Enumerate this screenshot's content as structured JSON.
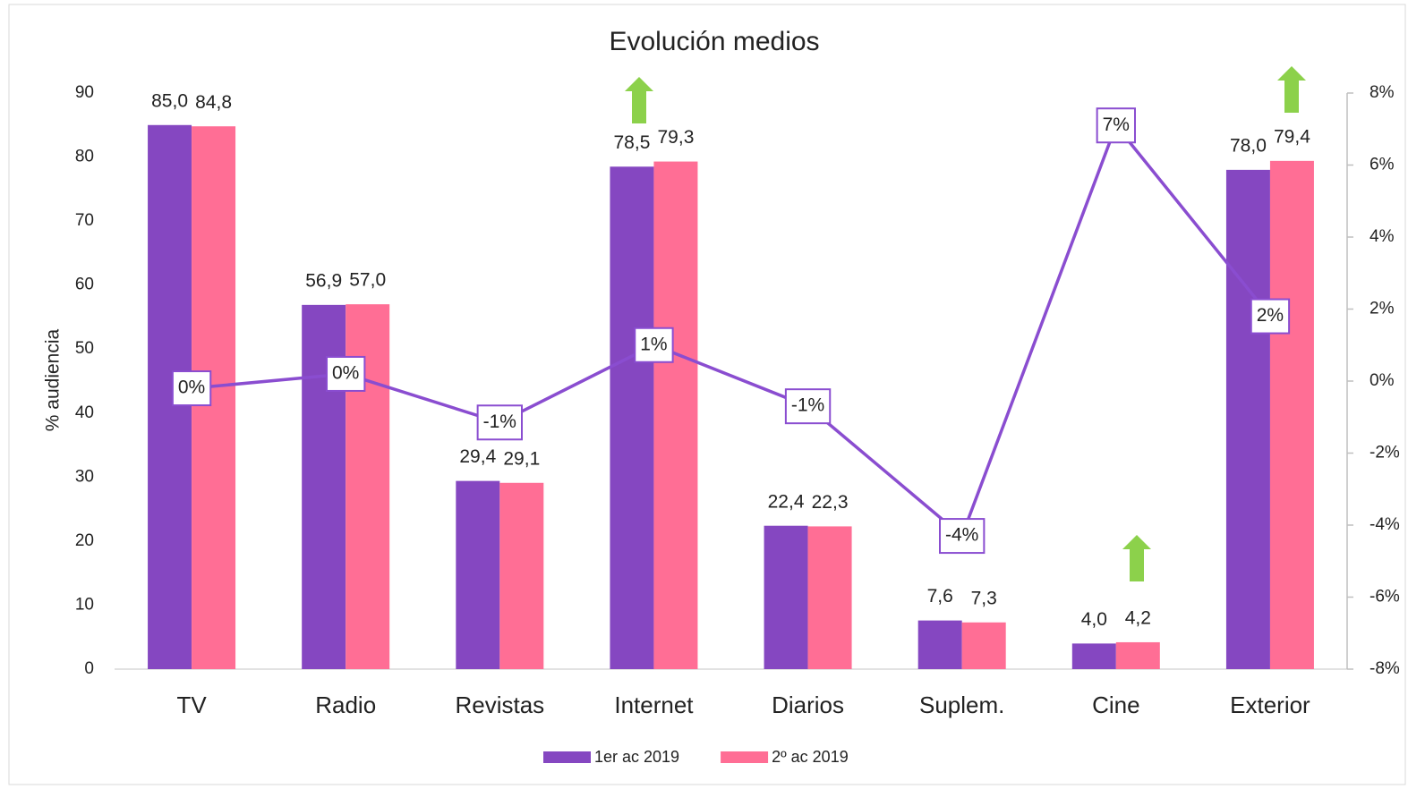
{
  "chart_data": {
    "type": "bar",
    "title": "Evolución medios",
    "y_label": "% audiencia",
    "categories": [
      "TV",
      "Radio",
      "Revistas",
      "Internet",
      "Diarios",
      "Suplem.",
      "Cine",
      "Exterior"
    ],
    "series": [
      {
        "name": "1er ac 2019",
        "color": "#8547c1",
        "values": [
          85.0,
          56.9,
          29.4,
          78.5,
          22.4,
          7.6,
          4.0,
          78.0
        ],
        "value_labels": [
          "85,0",
          "56,9",
          "29,4",
          "78,5",
          "22,4",
          "7,6",
          "4,0",
          "78,0"
        ]
      },
      {
        "name": "2º ac 2019",
        "color": "#ff6e95",
        "values": [
          84.8,
          57.0,
          29.1,
          79.3,
          22.3,
          7.3,
          4.2,
          79.4
        ],
        "value_labels": [
          "84,8",
          "57,0",
          "29,1",
          "79,3",
          "22,3",
          "7,3",
          "4,2",
          "79,4"
        ]
      },
      {
        "type": "line",
        "axis": "y2",
        "color": "#8a4dd0",
        "values": [
          -0.2,
          0.2,
          -1.15,
          1.0,
          -0.7,
          -4.3,
          7.1,
          1.8
        ],
        "value_labels": [
          "0%",
          "0%",
          "-1%",
          "1%",
          "-1%",
          "-4%",
          "7%",
          "2%"
        ]
      }
    ],
    "ylim": [
      0,
      90
    ],
    "yticks": [
      0,
      10,
      20,
      30,
      40,
      50,
      60,
      70,
      80,
      90
    ],
    "y2lim": [
      -8,
      8
    ],
    "y2ticks": [
      {
        "value": -8,
        "label": "-8%"
      },
      {
        "value": -6,
        "label": "-6%"
      },
      {
        "value": -4,
        "label": "-4%"
      },
      {
        "value": -2,
        "label": "-2%"
      },
      {
        "value": 0,
        "label": "0%"
      },
      {
        "value": 2,
        "label": "2%"
      },
      {
        "value": 4,
        "label": "4%"
      },
      {
        "value": 6,
        "label": "6%"
      },
      {
        "value": 8,
        "label": "8%"
      }
    ],
    "legend": "bottom",
    "grid": false
  }
}
